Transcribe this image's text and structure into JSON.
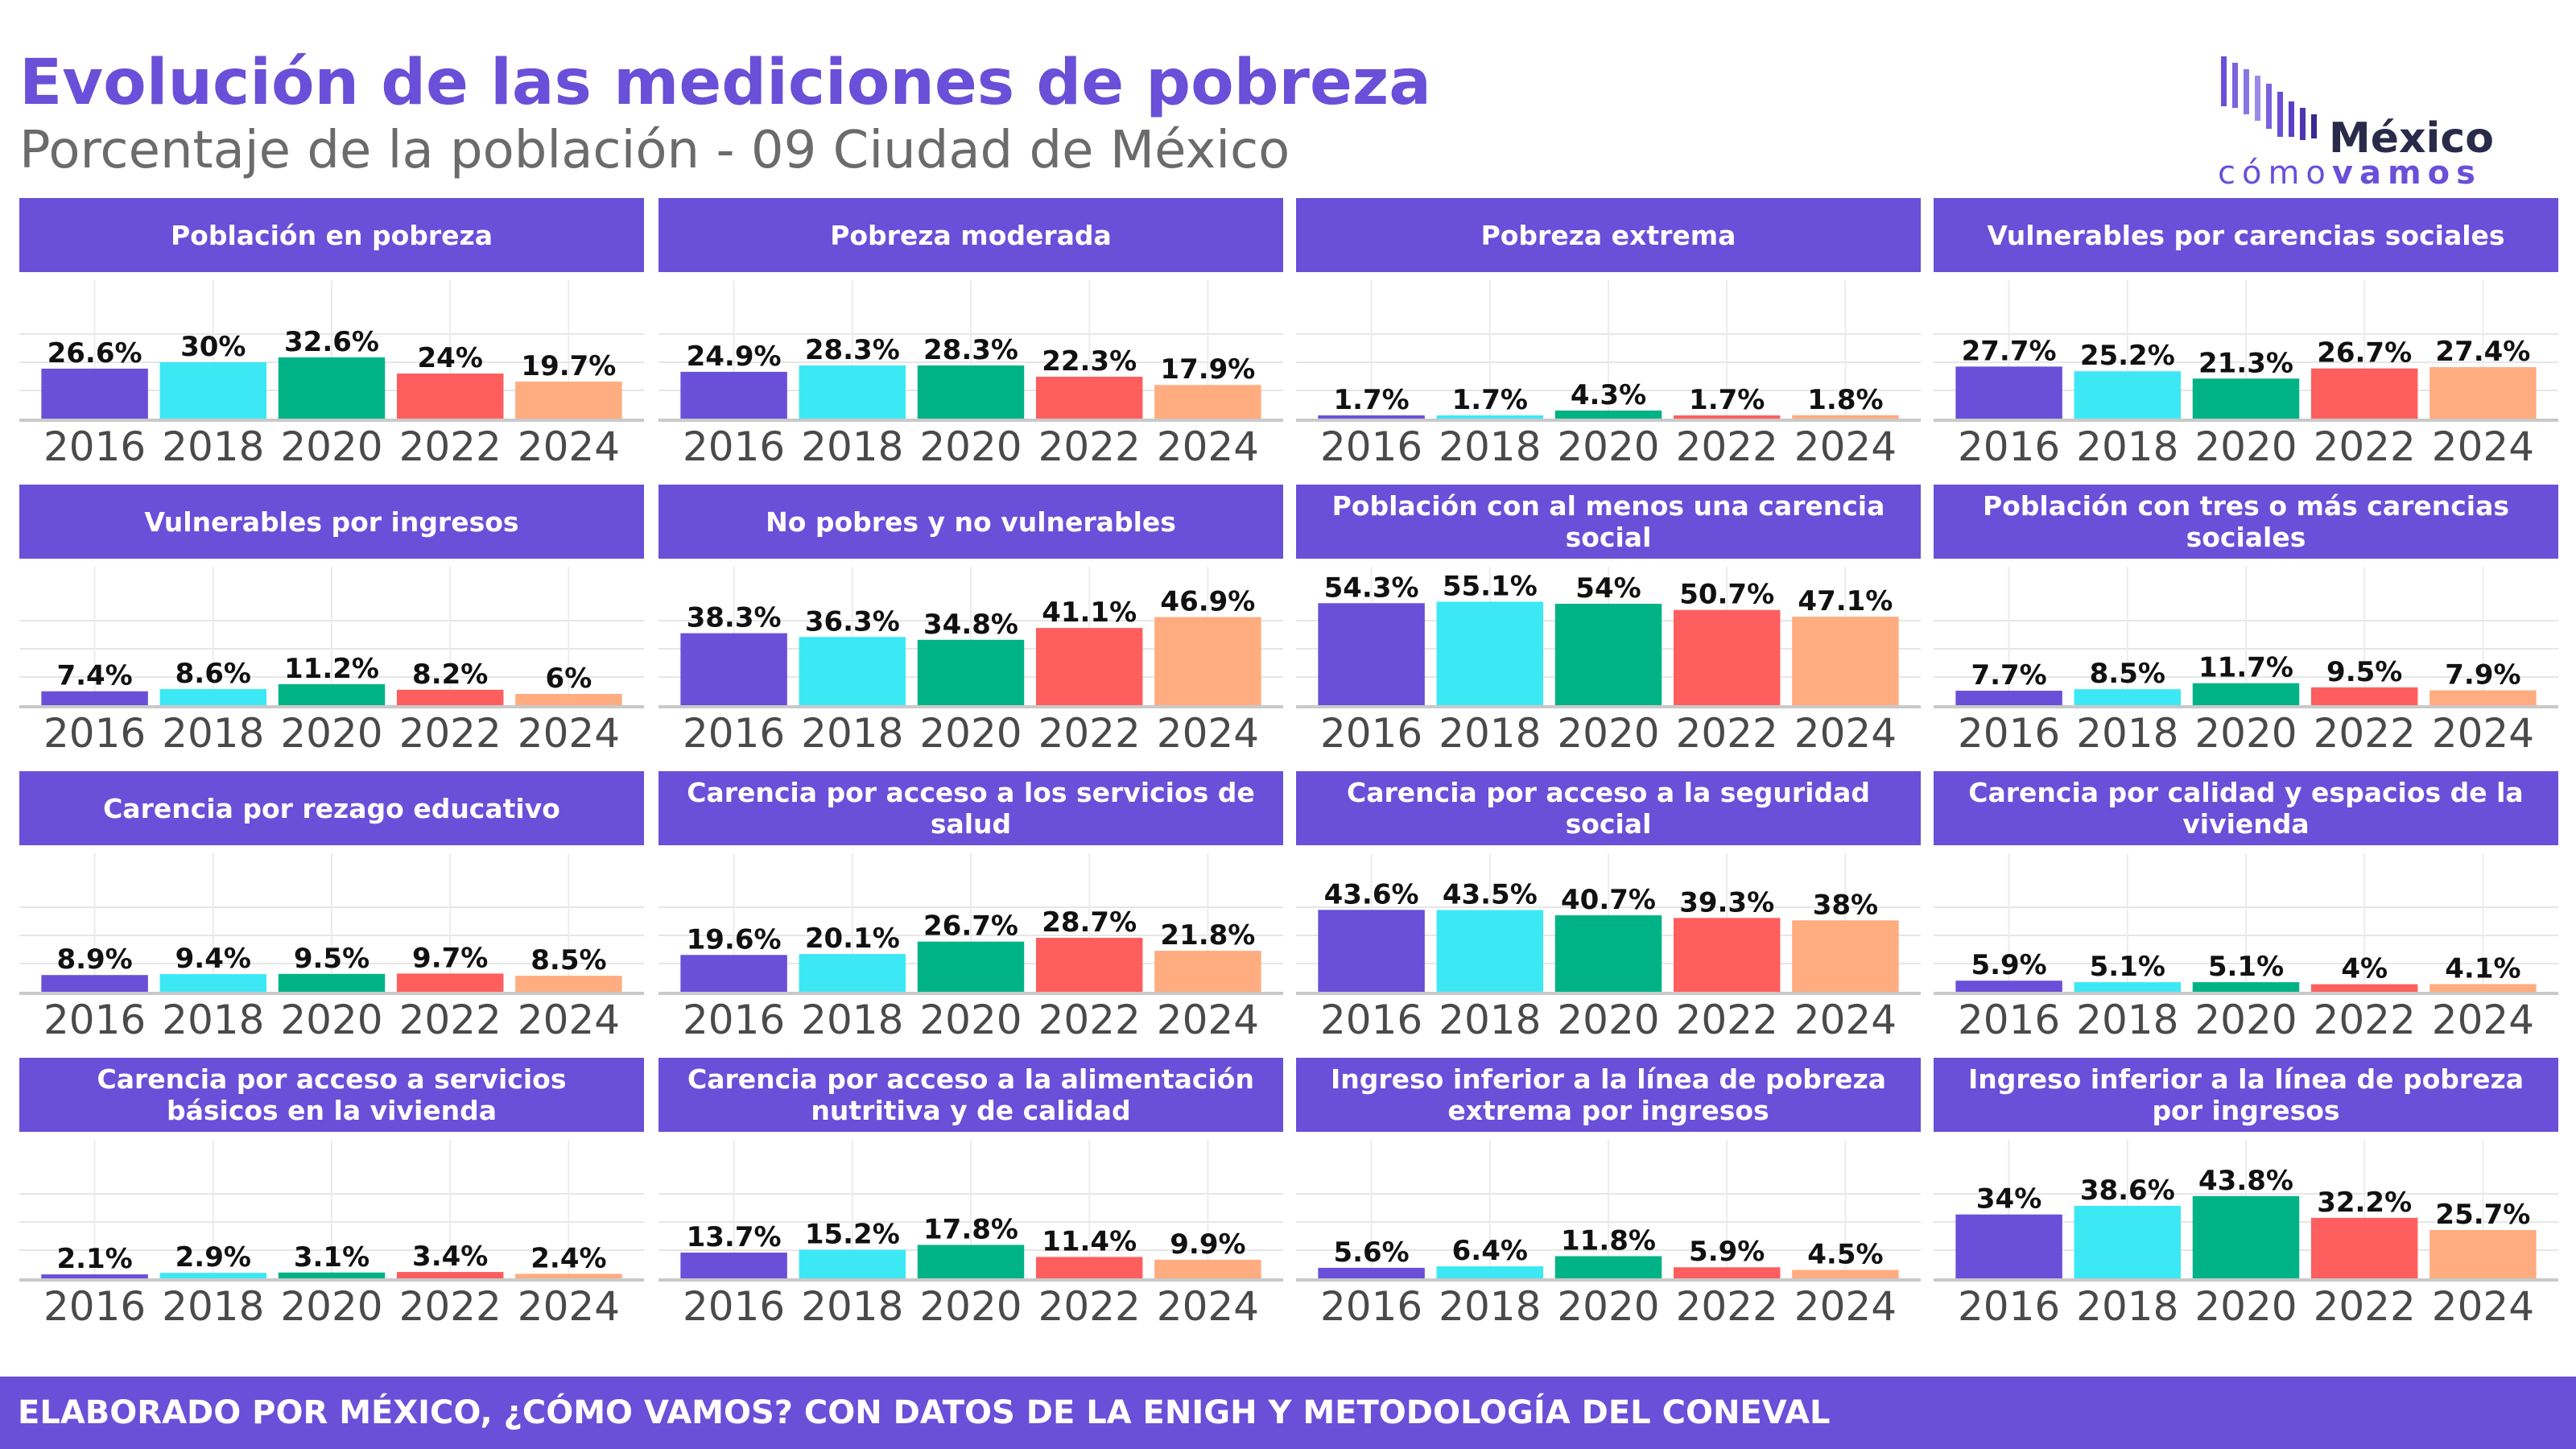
{
  "title": "Evolución de las mediciones de pobreza",
  "subtitle": "Porcentaje de la población - 09 Ciudad de México",
  "logo": {
    "top": "México",
    "bottom_light": "cómo",
    "bottom_bold": "vamos"
  },
  "footer": "ELABORADO POR MÉXICO, ¿CÓMO VAMOS? CON DATOS DE LA ENIGH Y METODOLOGÍA DEL CONEVAL",
  "colors": {
    "header": "#6a4fd8",
    "years": [
      "#6a4fd8",
      "#3de8f5",
      "#00b386",
      "#ff5e5e",
      "#ffac80"
    ]
  },
  "chart_data": [
    {
      "type": "bar",
      "title": "Población en pobreza",
      "categories": [
        "2016",
        "2018",
        "2020",
        "2022",
        "2024"
      ],
      "values": [
        26.6,
        30,
        32.6,
        24,
        19.7
      ],
      "labels": [
        "26.6%",
        "30%",
        "32.6%",
        "24%",
        "19.7%"
      ],
      "ylim": [
        0,
        60
      ]
    },
    {
      "type": "bar",
      "title": "Pobreza moderada",
      "categories": [
        "2016",
        "2018",
        "2020",
        "2022",
        "2024"
      ],
      "values": [
        24.9,
        28.3,
        28.3,
        22.3,
        17.9
      ],
      "labels": [
        "24.9%",
        "28.3%",
        "28.3%",
        "22.3%",
        "17.9%"
      ],
      "ylim": [
        0,
        60
      ]
    },
    {
      "type": "bar",
      "title": "Pobreza extrema",
      "categories": [
        "2016",
        "2018",
        "2020",
        "2022",
        "2024"
      ],
      "values": [
        1.7,
        1.7,
        4.3,
        1.7,
        1.8
      ],
      "labels": [
        "1.7%",
        "1.7%",
        "4.3%",
        "1.7%",
        "1.8%"
      ],
      "ylim": [
        0,
        60
      ]
    },
    {
      "type": "bar",
      "title": "Vulnerables por carencias sociales",
      "categories": [
        "2016",
        "2018",
        "2020",
        "2022",
        "2024"
      ],
      "values": [
        27.7,
        25.2,
        21.3,
        26.7,
        27.4
      ],
      "labels": [
        "27.7%",
        "25.2%",
        "21.3%",
        "26.7%",
        "27.4%"
      ],
      "ylim": [
        0,
        60
      ]
    },
    {
      "type": "bar",
      "title": "Vulnerables por ingresos",
      "categories": [
        "2016",
        "2018",
        "2020",
        "2022",
        "2024"
      ],
      "values": [
        7.4,
        8.6,
        11.2,
        8.2,
        6
      ],
      "labels": [
        "7.4%",
        "8.6%",
        "11.2%",
        "8.2%",
        "6%"
      ],
      "ylim": [
        0,
        60
      ]
    },
    {
      "type": "bar",
      "title": "No pobres y no vulnerables",
      "categories": [
        "2016",
        "2018",
        "2020",
        "2022",
        "2024"
      ],
      "values": [
        38.3,
        36.3,
        34.8,
        41.1,
        46.9
      ],
      "labels": [
        "38.3%",
        "36.3%",
        "34.8%",
        "41.1%",
        "46.9%"
      ],
      "ylim": [
        0,
        60
      ]
    },
    {
      "type": "bar",
      "title": "Población con al menos una carencia social",
      "categories": [
        "2016",
        "2018",
        "2020",
        "2022",
        "2024"
      ],
      "values": [
        54.3,
        55.1,
        54,
        50.7,
        47.1
      ],
      "labels": [
        "54.3%",
        "55.1%",
        "54%",
        "50.7%",
        "47.1%"
      ],
      "ylim": [
        0,
        60
      ]
    },
    {
      "type": "bar",
      "title": "Población con tres o más carencias sociales",
      "categories": [
        "2016",
        "2018",
        "2020",
        "2022",
        "2024"
      ],
      "values": [
        7.7,
        8.5,
        11.7,
        9.5,
        7.9
      ],
      "labels": [
        "7.7%",
        "8.5%",
        "11.7%",
        "9.5%",
        "7.9%"
      ],
      "ylim": [
        0,
        60
      ]
    },
    {
      "type": "bar",
      "title": "Carencia por rezago educativo",
      "categories": [
        "2016",
        "2018",
        "2020",
        "2022",
        "2024"
      ],
      "values": [
        8.9,
        9.4,
        9.5,
        9.7,
        8.5
      ],
      "labels": [
        "8.9%",
        "9.4%",
        "9.5%",
        "9.7%",
        "8.5%"
      ],
      "ylim": [
        0,
        60
      ]
    },
    {
      "type": "bar",
      "title": "Carencia por acceso a los servicios de salud",
      "categories": [
        "2016",
        "2018",
        "2020",
        "2022",
        "2024"
      ],
      "values": [
        19.6,
        20.1,
        26.7,
        28.7,
        21.8
      ],
      "labels": [
        "19.6%",
        "20.1%",
        "26.7%",
        "28.7%",
        "21.8%"
      ],
      "ylim": [
        0,
        60
      ]
    },
    {
      "type": "bar",
      "title": "Carencia por acceso a la seguridad social",
      "categories": [
        "2016",
        "2018",
        "2020",
        "2022",
        "2024"
      ],
      "values": [
        43.6,
        43.5,
        40.7,
        39.3,
        38
      ],
      "labels": [
        "43.6%",
        "43.5%",
        "40.7%",
        "39.3%",
        "38%"
      ],
      "ylim": [
        0,
        60
      ]
    },
    {
      "type": "bar",
      "title": "Carencia por calidad y espacios de la vivienda",
      "categories": [
        "2016",
        "2018",
        "2020",
        "2022",
        "2024"
      ],
      "values": [
        5.9,
        5.1,
        5.1,
        4,
        4.1
      ],
      "labels": [
        "5.9%",
        "5.1%",
        "5.1%",
        "4%",
        "4.1%"
      ],
      "ylim": [
        0,
        60
      ]
    },
    {
      "type": "bar",
      "title": "Carencia por acceso a servicios básicos en la vivienda",
      "categories": [
        "2016",
        "2018",
        "2020",
        "2022",
        "2024"
      ],
      "values": [
        2.1,
        2.9,
        3.1,
        3.4,
        2.4
      ],
      "labels": [
        "2.1%",
        "2.9%",
        "3.1%",
        "3.4%",
        "2.4%"
      ],
      "ylim": [
        0,
        60
      ]
    },
    {
      "type": "bar",
      "title": "Carencia por acceso a la alimentación nutritiva y de calidad",
      "categories": [
        "2016",
        "2018",
        "2020",
        "2022",
        "2024"
      ],
      "values": [
        13.7,
        15.2,
        17.8,
        11.4,
        9.9
      ],
      "labels": [
        "13.7%",
        "15.2%",
        "17.8%",
        "11.4%",
        "9.9%"
      ],
      "ylim": [
        0,
        60
      ]
    },
    {
      "type": "bar",
      "title": "Ingreso inferior a la línea de pobreza extrema por ingresos",
      "categories": [
        "2016",
        "2018",
        "2020",
        "2022",
        "2024"
      ],
      "values": [
        5.6,
        6.4,
        11.8,
        5.9,
        4.5
      ],
      "labels": [
        "5.6%",
        "6.4%",
        "11.8%",
        "5.9%",
        "4.5%"
      ],
      "ylim": [
        0,
        60
      ]
    },
    {
      "type": "bar",
      "title": "Ingreso inferior a la línea de pobreza por ingresos",
      "categories": [
        "2016",
        "2018",
        "2020",
        "2022",
        "2024"
      ],
      "values": [
        34,
        38.6,
        43.8,
        32.2,
        25.7
      ],
      "labels": [
        "34%",
        "38.6%",
        "43.8%",
        "32.2%",
        "25.7%"
      ],
      "ylim": [
        0,
        60
      ]
    }
  ]
}
